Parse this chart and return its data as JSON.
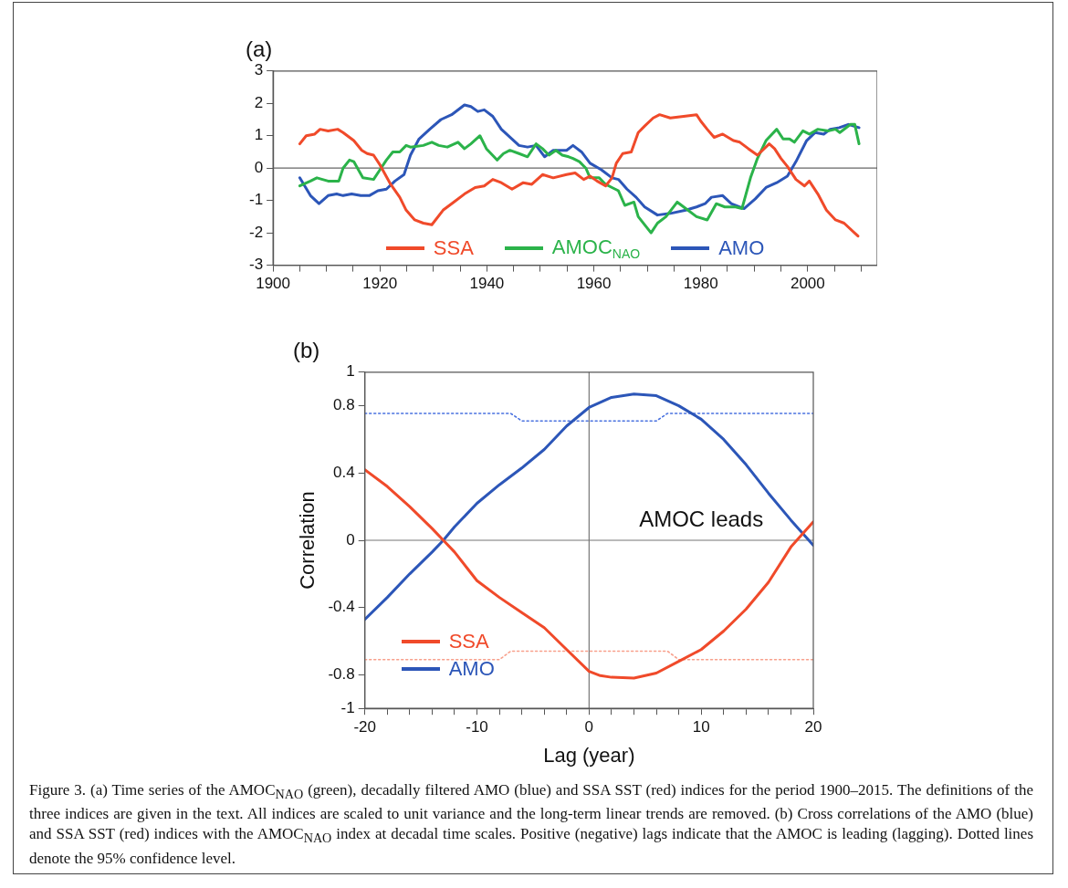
{
  "chart_data": [
    {
      "type": "line",
      "title": "(a)",
      "xlim": [
        1900,
        2013
      ],
      "ylim": [
        -3,
        3
      ],
      "xticks": [
        1900,
        {
          "value": 1905,
          "label": null
        },
        {
          "value": 1910,
          "label": null
        },
        {
          "value": 1915,
          "label": null
        },
        1920,
        {
          "value": 1925,
          "label": null
        },
        {
          "value": 1930,
          "label": null
        },
        {
          "value": 1935,
          "label": null
        },
        1940,
        {
          "value": 1945,
          "label": null
        },
        {
          "value": 1950,
          "label": null
        },
        {
          "value": 1955,
          "label": null
        },
        1960,
        {
          "value": 1965,
          "label": null
        },
        {
          "value": 1970,
          "label": null
        },
        {
          "value": 1975,
          "label": null
        },
        1980,
        {
          "value": 1985,
          "label": null
        },
        {
          "value": 1990,
          "label": null
        },
        {
          "value": 1995,
          "label": null
        },
        2000,
        {
          "value": 2005,
          "label": null
        },
        {
          "value": 2010,
          "label": null
        }
      ],
      "yticks": [
        -3,
        -2,
        -1,
        0,
        1,
        2,
        3
      ],
      "legend": "bottom",
      "ref_lines": [
        {
          "axis": "y",
          "value": 0,
          "color": "#666666"
        }
      ],
      "series": [
        {
          "name": "SSA",
          "color": "#f04a2a",
          "x": [
            1905,
            1906.2,
            1907.8,
            1908.8,
            1910.3,
            1912.1,
            1913.1,
            1915.1,
            1916.6,
            1917.6,
            1918.8,
            1920,
            1922,
            1923.7,
            1924.9,
            1926.5,
            1928.1,
            1929.7,
            1931.8,
            1933.8,
            1935.8,
            1937.8,
            1939.5,
            1941.1,
            1942.7,
            1944.7,
            1946.8,
            1948.4,
            1950.4,
            1952.4,
            1954.9,
            1956.5,
            1958.1,
            1959.3,
            1960.6,
            1962.2,
            1963.4,
            1964.2,
            1965.4,
            1967,
            1968.3,
            1969.5,
            1971.1,
            1972.3,
            1974.3,
            1976.8,
            1979.2,
            1980,
            1981.2,
            1982.5,
            1984.1,
            1986.1,
            1987.3,
            1988.9,
            1990.6,
            1992.8,
            1993.8,
            1995,
            1996.2,
            1997.8,
            1999.4,
            2000.3,
            2001.9,
            2003.5,
            2005.2,
            2006.8,
            2009.4
          ],
          "values": [
            0.75,
            1.0,
            1.05,
            1.2,
            1.15,
            1.2,
            1.1,
            0.85,
            0.55,
            0.45,
            0.4,
            0.1,
            -0.5,
            -0.9,
            -1.3,
            -1.6,
            -1.7,
            -1.75,
            -1.3,
            -1.05,
            -0.8,
            -0.6,
            -0.55,
            -0.35,
            -0.45,
            -0.65,
            -0.45,
            -0.5,
            -0.2,
            -0.3,
            -0.2,
            -0.15,
            -0.35,
            -0.25,
            -0.4,
            -0.55,
            -0.3,
            0.15,
            0.45,
            0.5,
            1.1,
            1.3,
            1.55,
            1.65,
            1.55,
            1.6,
            1.65,
            1.45,
            1.2,
            0.95,
            1.05,
            0.85,
            0.8,
            0.6,
            0.4,
            0.75,
            0.6,
            0.3,
            0.05,
            -0.35,
            -0.55,
            -0.4,
            -0.8,
            -1.3,
            -1.6,
            -1.7,
            -2.1
          ]
        },
        {
          "name": "AMOC$_{NAO}$",
          "color": "#2bb34a",
          "x": [
            1905,
            1907,
            1908.2,
            1910.3,
            1912.3,
            1913.1,
            1914.3,
            1915.1,
            1916.8,
            1918.8,
            1920,
            1921.2,
            1922.4,
            1923.7,
            1924.9,
            1925.7,
            1928.1,
            1929.7,
            1931,
            1932.6,
            1934.6,
            1935.8,
            1937,
            1938.7,
            1939.9,
            1941.9,
            1943.1,
            1944.3,
            1946,
            1947.6,
            1949.2,
            1950.4,
            1951.6,
            1952.9,
            1954.1,
            1955.3,
            1956.1,
            1957.3,
            1958.5,
            1959.3,
            1961,
            1962.2,
            1963.4,
            1964.6,
            1965.8,
            1967.5,
            1968.3,
            1970.7,
            1971.9,
            1973.5,
            1975.6,
            1976.8,
            1979.2,
            1981.2,
            1982.9,
            1984.5,
            1986.5,
            1987.7,
            1989.3,
            1990.6,
            1992.2,
            1994.2,
            1995.4,
            1996.6,
            1997.5,
            1999.1,
            2000.3,
            2001.9,
            2003.9,
            2005.2,
            2006,
            2008,
            2008.8,
            2009.6
          ],
          "values": [
            -0.55,
            -0.4,
            -0.3,
            -0.4,
            -0.4,
            0.0,
            0.25,
            0.2,
            -0.3,
            -0.35,
            -0.05,
            0.25,
            0.5,
            0.5,
            0.7,
            0.65,
            0.7,
            0.8,
            0.7,
            0.65,
            0.8,
            0.6,
            0.75,
            1.0,
            0.6,
            0.25,
            0.45,
            0.55,
            0.45,
            0.35,
            0.75,
            0.6,
            0.4,
            0.55,
            0.4,
            0.35,
            0.3,
            0.2,
            0.0,
            -0.3,
            -0.3,
            -0.5,
            -0.6,
            -0.7,
            -1.15,
            -1.05,
            -1.5,
            -2.0,
            -1.7,
            -1.5,
            -1.05,
            -1.2,
            -1.5,
            -1.6,
            -1.1,
            -1.2,
            -1.2,
            -1.25,
            -0.3,
            0.3,
            0.85,
            1.2,
            0.9,
            0.9,
            0.8,
            1.15,
            1.05,
            1.2,
            1.15,
            1.2,
            1.1,
            1.35,
            1.35,
            0.75
          ]
        },
        {
          "name": "AMO",
          "color": "#2c56b8",
          "x": [
            1905,
            1907,
            1908.6,
            1910.3,
            1911.9,
            1913.1,
            1914.7,
            1916.4,
            1918,
            1919.6,
            1921.2,
            1922.8,
            1924.5,
            1925.7,
            1927.3,
            1929.3,
            1931.4,
            1933.4,
            1935.8,
            1937,
            1938.3,
            1939.5,
            1941.1,
            1942.7,
            1944.7,
            1946,
            1947.6,
            1949.2,
            1950.8,
            1952.4,
            1954.9,
            1956.1,
            1957.7,
            1959.3,
            1961.4,
            1963.4,
            1964.6,
            1966.2,
            1967.9,
            1969.5,
            1971.9,
            1974.3,
            1977.2,
            1979.2,
            1980.8,
            1982,
            1984.1,
            1985.7,
            1988.1,
            1990.2,
            1992.2,
            1994.2,
            1996.2,
            1997.8,
            1999.8,
            2001.4,
            2003,
            2004.2,
            2005.9,
            2007.6,
            2009.6
          ],
          "values": [
            -0.3,
            -0.85,
            -1.1,
            -0.85,
            -0.8,
            -0.85,
            -0.8,
            -0.85,
            -0.85,
            -0.7,
            -0.65,
            -0.4,
            -0.2,
            0.4,
            0.9,
            1.2,
            1.5,
            1.65,
            1.95,
            1.9,
            1.75,
            1.8,
            1.6,
            1.2,
            0.9,
            0.7,
            0.65,
            0.7,
            0.35,
            0.55,
            0.55,
            0.7,
            0.5,
            0.15,
            -0.05,
            -0.3,
            -0.35,
            -0.65,
            -0.9,
            -1.2,
            -1.45,
            -1.4,
            -1.3,
            -1.2,
            -1.1,
            -0.9,
            -0.85,
            -1.1,
            -1.25,
            -0.95,
            -0.6,
            -0.45,
            -0.25,
            0.2,
            0.85,
            1.1,
            1.05,
            1.2,
            1.25,
            1.35,
            1.25
          ]
        }
      ]
    },
    {
      "type": "line",
      "title": "(b)",
      "xlabel": "Lag (year)",
      "ylabel": "Correlation",
      "xlim": [
        -20,
        20
      ],
      "ylim": [
        -1,
        1
      ],
      "xticks": [
        -20,
        {
          "value": -18,
          "label": null
        },
        {
          "value": -16,
          "label": null
        },
        {
          "value": -14,
          "label": null
        },
        {
          "value": -12,
          "label": null
        },
        -10,
        {
          "value": -8,
          "label": null
        },
        {
          "value": -6,
          "label": null
        },
        {
          "value": -4,
          "label": null
        },
        {
          "value": -2,
          "label": null
        },
        0,
        {
          "value": 2,
          "label": null
        },
        {
          "value": 4,
          "label": null
        },
        {
          "value": 6,
          "label": null
        },
        {
          "value": 8,
          "label": null
        },
        10,
        {
          "value": 12,
          "label": null
        },
        {
          "value": 14,
          "label": null
        },
        {
          "value": 16,
          "label": null
        },
        {
          "value": 18,
          "label": null
        },
        20
      ],
      "yticks": [
        -1,
        -0.8,
        -0.4,
        0,
        0.4,
        0.8,
        1
      ],
      "legend": "bottom left",
      "ref_lines": [
        {
          "axis": "y",
          "value": 0,
          "color": "#777777"
        },
        {
          "axis": "x",
          "value": 0,
          "color": "#777777"
        }
      ],
      "annotations": [
        "AMOC leads",
        "Figure 3. (a) Time series of the AMOC$_{NAO}$ (green), decadally filtered AMO (blue) and SSA SST (red) indices for the period 1900–2015. The definitions of the three indices are given in the text. All indices are scaled to unit variance and the long-term linear trends are removed. (b) Cross correlations of the AMO (blue) and SSA SST (red) indices with the AMOC$_{NAO}$ index at decadal time scales. Positive (negative) lags indicate that the AMOC is leading (lagging). Dotted lines denote the 95% confidence level."
      ],
      "series": [
        {
          "name": "SSA",
          "color": "#f04a2a",
          "x": [
            -20,
            -18,
            -16,
            -14,
            -13,
            -12,
            -10,
            -8,
            -6,
            -4,
            -2,
            0,
            1,
            2,
            4,
            6,
            8,
            10,
            12,
            14,
            16,
            18,
            20
          ],
          "values": [
            0.42,
            0.32,
            0.2,
            0.07,
            0,
            -0.07,
            -0.24,
            -0.34,
            -0.43,
            -0.52,
            -0.65,
            -0.78,
            -0.805,
            -0.815,
            -0.82,
            -0.79,
            -0.72,
            -0.65,
            -0.54,
            -0.41,
            -0.25,
            -0.04,
            0.11
          ]
        },
        {
          "name": "AMO",
          "color": "#2c56b8",
          "x": [
            -20,
            -18,
            -16,
            -14,
            -13,
            -12,
            -10,
            -8,
            -6,
            -4,
            -2,
            0,
            2,
            4,
            6,
            8,
            10,
            12,
            14,
            16,
            18,
            20
          ],
          "values": [
            -0.47,
            -0.34,
            -0.2,
            -0.07,
            0,
            0.08,
            0.22,
            0.33,
            0.43,
            0.54,
            0.68,
            0.79,
            0.85,
            0.87,
            0.86,
            0.8,
            0.72,
            0.6,
            0.45,
            0.28,
            0.12,
            -0.03
          ]
        },
        {
          "color": "#4a72e0",
          "line_style": "dotted",
          "x": [
            -20,
            -7,
            -6,
            6,
            7,
            20
          ],
          "values": [
            0.755,
            0.755,
            0.71,
            0.71,
            0.755,
            0.755
          ]
        },
        {
          "color": "#f8a08c",
          "line_style": "dotted",
          "x": [
            -20,
            -8,
            -7,
            7,
            8,
            20
          ],
          "values": [
            -0.71,
            -0.71,
            -0.66,
            -0.66,
            -0.71,
            -0.71
          ]
        }
      ]
    }
  ]
}
